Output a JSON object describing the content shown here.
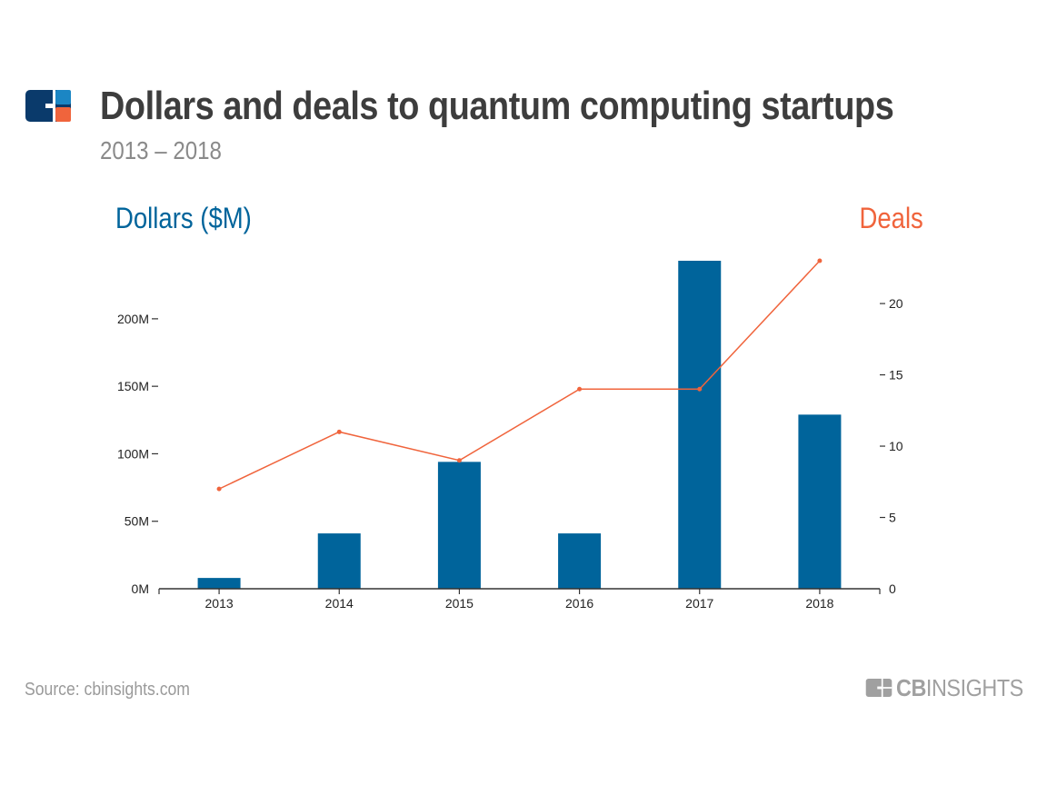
{
  "header": {
    "title": "Dollars and deals to quantum computing startups",
    "subtitle": "2013 – 2018",
    "logo_icon": "cb-insights-logo-icon"
  },
  "footer": {
    "source": "Source: cbinsights.com",
    "brand_bold": "CB",
    "brand_light": "INSIGHTS"
  },
  "colors": {
    "bars": "#00649b",
    "line": "#f0643c",
    "title": "#3d3d3d",
    "subtitle": "#8a8a8a"
  },
  "chart_data": {
    "type": "bar",
    "title": "Dollars and deals to quantum computing startups",
    "subtitle": "2013 – 2018",
    "categories": [
      "2013",
      "2014",
      "2015",
      "2016",
      "2017",
      "2018"
    ],
    "series": [
      {
        "name": "Dollars ($M)",
        "type": "bar",
        "axis": "left",
        "values": [
          8,
          41,
          94,
          41,
          243,
          129
        ]
      },
      {
        "name": "Deals",
        "type": "line",
        "axis": "right",
        "values": [
          7,
          11,
          9,
          14,
          14,
          23
        ]
      }
    ],
    "ylabel_left": "Dollars ($M)",
    "ylabel_right": "Deals",
    "xlabel": "",
    "ylim_left": [
      0,
      243
    ],
    "ylim_right": [
      0,
      23
    ],
    "yticks_left": [
      {
        "value": 0,
        "label": "0M"
      },
      {
        "value": 50,
        "label": "50M"
      },
      {
        "value": 100,
        "label": "100M"
      },
      {
        "value": 150,
        "label": "150M"
      },
      {
        "value": 200,
        "label": "200M"
      }
    ],
    "yticks_right": [
      {
        "value": 0,
        "label": "0"
      },
      {
        "value": 5,
        "label": "5"
      },
      {
        "value": 10,
        "label": "10"
      },
      {
        "value": 15,
        "label": "15"
      },
      {
        "value": 20,
        "label": "20"
      }
    ],
    "grid": false,
    "legend": "none"
  }
}
